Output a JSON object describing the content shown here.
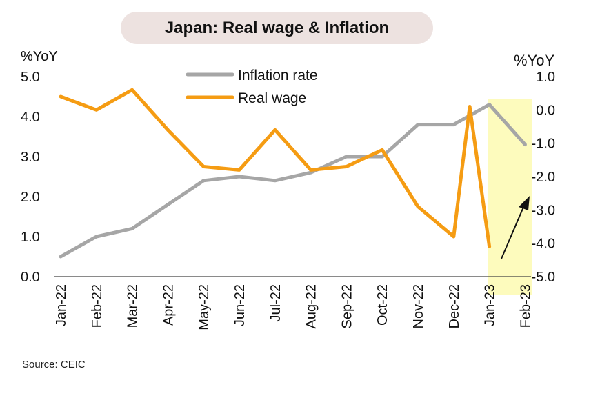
{
  "title": "Japan: Real wage & Inflation",
  "source": "Source: CEIC",
  "chart_data": {
    "type": "line",
    "title": "Japan: Real wage & Inflation",
    "categories": [
      "Jan-22",
      "Feb-22",
      "Mar-22",
      "Apr-22",
      "May-22",
      "Jun-22",
      "Jul-22",
      "Aug-22",
      "Sep-22",
      "Oct-22",
      "Nov-22",
      "Dec-22",
      "Jan-23",
      "Feb-23"
    ],
    "left_axis": {
      "label": "%YoY",
      "ylim": [
        0,
        5
      ],
      "ticks": [
        "0.0",
        "1.0",
        "2.0",
        "3.0",
        "4.0",
        "5.0"
      ]
    },
    "right_axis": {
      "label": "%YoY",
      "ylim": [
        -5,
        1
      ],
      "ticks": [
        "-5.0",
        "-4.0",
        "-3.0",
        "-2.0",
        "-1.0",
        "0.0",
        "1.0"
      ]
    },
    "series": [
      {
        "name": "Inflation rate",
        "axis": "left",
        "color": "#a6a6a6",
        "values": [
          0.5,
          1.0,
          1.2,
          1.8,
          2.4,
          2.5,
          2.4,
          2.6,
          3.0,
          3.0,
          3.8,
          3.8,
          4.3,
          3.3
        ]
      },
      {
        "name": "Real wage",
        "axis": "right",
        "color": "#f59c13",
        "values": [
          0.4,
          0.0,
          0.6,
          -0.6,
          -1.7,
          -1.8,
          -0.6,
          -1.8,
          -1.7,
          -1.2,
          -2.9,
          -3.8,
          0.1,
          -4.1
        ]
      }
    ],
    "real_wage_points": [
      "Jan-22",
      "Feb-22",
      "Mar-22",
      "Apr-22",
      "May-22",
      "Jun-22",
      "Jul-22",
      "Aug-22",
      "Sep-22",
      "Oct-22",
      "Nov-22",
      "Dec-22",
      "Dec-22 (late)",
      "Jan-23"
    ],
    "highlight": {
      "from": "Jan-23",
      "to": "Feb-23",
      "color": "#fdfbbd"
    },
    "annotation": {
      "type": "arrow",
      "direction": "up-right",
      "color": "#111111"
    },
    "legend_position": "top-center",
    "grid": false
  }
}
